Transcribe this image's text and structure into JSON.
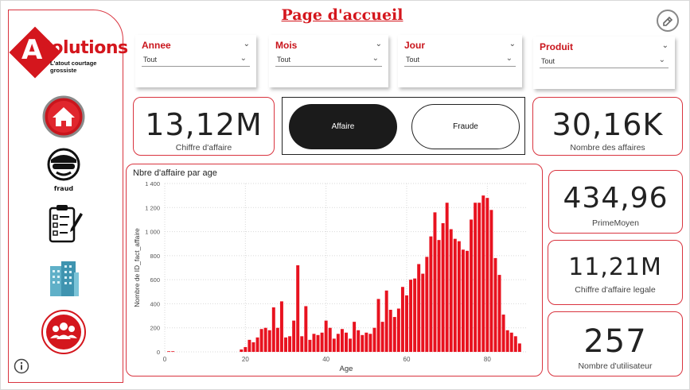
{
  "title": "Page d'accueil",
  "logo": {
    "letter": "A",
    "brand": "Solutions",
    "tagline": "L'atout courtage grossiste"
  },
  "nav": [
    {
      "name": "home"
    },
    {
      "name": "fraud",
      "label": "fraud"
    },
    {
      "name": "checklist"
    },
    {
      "name": "building"
    },
    {
      "name": "users"
    }
  ],
  "slicers": [
    {
      "label": "Annee",
      "value": "Tout"
    },
    {
      "label": "Mois",
      "value": "Tout"
    },
    {
      "label": "Jour",
      "value": "Tout"
    },
    {
      "label": "Produit",
      "value": "Tout"
    }
  ],
  "kpis": {
    "chiffre": {
      "value": "13,12M",
      "label": "Chiffre d'affaire"
    },
    "affaires": {
      "value": "30,16K",
      "label": "Nombre des affaires"
    },
    "prime": {
      "value": "434,96",
      "label": "PrimeMoyen"
    },
    "legale": {
      "value": "11,21M",
      "label": "Chiffre d'affaire legale"
    },
    "users": {
      "value": "257",
      "label": "Nombre d'utilisateur"
    }
  },
  "toggle": {
    "active": "Affaire",
    "inactive": "Fraude"
  },
  "colors": {
    "accent": "#d4161d",
    "bar": "#e8121f"
  },
  "chart_data": {
    "type": "bar",
    "title": "Nbre d'affaire par age",
    "xlabel": "Age",
    "ylabel": "Nombre de ID_fact_affaire",
    "xlim": [
      0,
      90
    ],
    "ylim": [
      0,
      1400
    ],
    "yticks": [
      0,
      200,
      400,
      600,
      800,
      1000,
      1200,
      1400
    ],
    "ytick_labels": [
      "0",
      "200",
      "400",
      "600",
      "800",
      "1 000",
      "1 200",
      "1 400"
    ],
    "xticks": [
      0,
      20,
      40,
      60,
      80
    ],
    "x": [
      1,
      2,
      19,
      20,
      21,
      22,
      23,
      24,
      25,
      26,
      27,
      28,
      29,
      30,
      31,
      32,
      33,
      34,
      35,
      36,
      37,
      38,
      39,
      40,
      41,
      42,
      43,
      44,
      45,
      46,
      47,
      48,
      49,
      50,
      51,
      52,
      53,
      54,
      55,
      56,
      57,
      58,
      59,
      60,
      61,
      62,
      63,
      64,
      65,
      66,
      67,
      68,
      69,
      70,
      71,
      72,
      73,
      74,
      75,
      76,
      77,
      78,
      79,
      80,
      81,
      82,
      83,
      84,
      85,
      86,
      87,
      88
    ],
    "values": [
      5,
      5,
      20,
      40,
      100,
      80,
      120,
      190,
      200,
      180,
      370,
      200,
      420,
      120,
      130,
      260,
      720,
      130,
      380,
      100,
      150,
      140,
      160,
      260,
      200,
      110,
      150,
      190,
      160,
      110,
      250,
      180,
      140,
      160,
      150,
      200,
      440,
      250,
      510,
      350,
      290,
      360,
      540,
      470,
      600,
      610,
      730,
      650,
      790,
      960,
      1160,
      930,
      1070,
      1240,
      1020,
      940,
      920,
      850,
      840,
      1100,
      1240,
      1240,
      1300,
      1280,
      1180,
      780,
      640,
      310,
      180,
      160,
      130,
      70
    ]
  }
}
